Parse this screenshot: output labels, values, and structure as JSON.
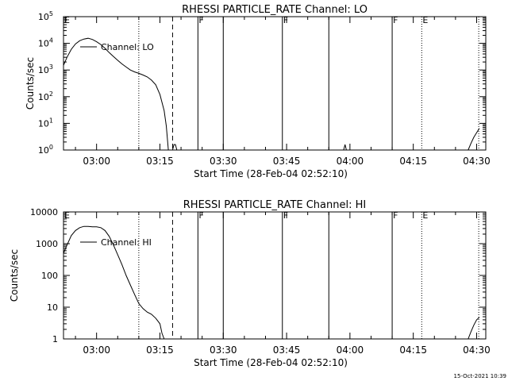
{
  "footer": {
    "timestamp": "15-Oct-2021 10:39"
  },
  "chart_data": [
    {
      "type": "line",
      "title": "RHESSI PARTICLE_RATE Channel: LO",
      "xlabel": "Start Time (28-Feb-04 02:52:10)",
      "ylabel": "Counts/sec",
      "y_scale": "log",
      "ylim": [
        1,
        100000
      ],
      "xlim": [
        "02:52:10",
        "04:32:10"
      ],
      "x_tick_labels": [
        "03:00",
        "03:15",
        "03:30",
        "03:45",
        "04:00",
        "04:15",
        "04:30"
      ],
      "y_tick_labels": [
        {
          "base": "10",
          "exp": "0"
        },
        {
          "base": "10",
          "exp": "1"
        },
        {
          "base": "10",
          "exp": "2"
        },
        {
          "base": "10",
          "exp": "3"
        },
        {
          "base": "10",
          "exp": "4"
        },
        {
          "base": "10",
          "exp": "5"
        }
      ],
      "legend": "top-left",
      "series": [
        {
          "name": "Channel: LO",
          "points": [
            [
              "02:52:10",
              1500
            ],
            [
              "02:53:00",
              3000
            ],
            [
              "02:54:00",
              6000
            ],
            [
              "02:55:00",
              9500
            ],
            [
              "02:56:00",
              12500
            ],
            [
              "02:57:00",
              14500
            ],
            [
              "02:58:00",
              15500
            ],
            [
              "02:59:00",
              14000
            ],
            [
              "03:00:00",
              11500
            ],
            [
              "03:01:00",
              9000
            ],
            [
              "03:02:00",
              6500
            ],
            [
              "03:03:00",
              4500
            ],
            [
              "03:04:00",
              3200
            ],
            [
              "03:05:00",
              2300
            ],
            [
              "03:06:00",
              1700
            ],
            [
              "03:07:00",
              1300
            ],
            [
              "03:08:00",
              1000
            ],
            [
              "03:09:00",
              850
            ],
            [
              "03:10:00",
              750
            ],
            [
              "03:11:00",
              650
            ],
            [
              "03:12:00",
              550
            ],
            [
              "03:13:00",
              420
            ],
            [
              "03:14:00",
              280
            ],
            [
              "03:15:00",
              120
            ],
            [
              "03:16:00",
              30
            ],
            [
              "03:16:30",
              8
            ],
            [
              "03:17:00",
              1
            ]
          ]
        },
        {
          "name": "",
          "points": [
            [
              "03:18:00",
              1
            ],
            [
              "03:18:20",
              1.6
            ],
            [
              "03:18:40",
              1.6
            ],
            [
              "03:19:00",
              1
            ]
          ]
        },
        {
          "name": "",
          "points": [
            [
              "03:58:30",
              1
            ],
            [
              "03:58:50",
              1.6
            ],
            [
              "03:59:10",
              1
            ]
          ]
        },
        {
          "name": "",
          "points": [
            [
              "04:28:00",
              1
            ],
            [
              "04:28:40",
              1.8
            ],
            [
              "04:29:20",
              3
            ],
            [
              "04:30:00",
              4.5
            ],
            [
              "04:30:40",
              6.5
            ]
          ]
        }
      ],
      "markers": [
        {
          "time": "02:52:10",
          "style": "solid",
          "label": "E"
        },
        {
          "time": "03:10:00",
          "style": "dotted",
          "label": ""
        },
        {
          "time": "03:18:00",
          "style": "dashed",
          "label": ""
        },
        {
          "time": "03:24:00",
          "style": "solid",
          "label": "F"
        },
        {
          "time": "03:30:00",
          "style": "solid",
          "label": ""
        },
        {
          "time": "03:44:00",
          "style": "solid",
          "label": "F"
        },
        {
          "time": "03:55:00",
          "style": "solid",
          "label": ""
        },
        {
          "time": "04:10:00",
          "style": "solid",
          "label": "F"
        },
        {
          "time": "04:17:00",
          "style": "dotted",
          "label": "E"
        },
        {
          "time": "04:30:30",
          "style": "dotted",
          "label": ""
        }
      ]
    },
    {
      "type": "line",
      "title": "RHESSI PARTICLE_RATE Channel: HI",
      "xlabel": "Start Time (28-Feb-04 02:52:10)",
      "ylabel": "Counts/sec",
      "y_scale": "log",
      "ylim": [
        1,
        10000
      ],
      "xlim": [
        "02:52:10",
        "04:32:10"
      ],
      "x_tick_labels": [
        "03:00",
        "03:15",
        "03:30",
        "03:45",
        "04:00",
        "04:15",
        "04:30"
      ],
      "y_tick_labels": [
        {
          "base": "1",
          "exp": ""
        },
        {
          "base": "10",
          "exp": ""
        },
        {
          "base": "100",
          "exp": ""
        },
        {
          "base": "1000",
          "exp": ""
        },
        {
          "base": "10000",
          "exp": ""
        }
      ],
      "legend": "top-left",
      "series": [
        {
          "name": "Channel: HI",
          "points": [
            [
              "02:52:10",
              500
            ],
            [
              "02:53:00",
              900
            ],
            [
              "02:54:00",
              1800
            ],
            [
              "02:55:00",
              2600
            ],
            [
              "02:56:00",
              3200
            ],
            [
              "02:57:00",
              3500
            ],
            [
              "02:58:00",
              3500
            ],
            [
              "02:59:00",
              3400
            ],
            [
              "03:00:00",
              3400
            ],
            [
              "03:01:00",
              3200
            ],
            [
              "03:02:00",
              2600
            ],
            [
              "03:03:00",
              1700
            ],
            [
              "03:04:00",
              900
            ],
            [
              "03:05:00",
              450
            ],
            [
              "03:06:00",
              220
            ],
            [
              "03:07:00",
              100
            ],
            [
              "03:08:00",
              50
            ],
            [
              "03:09:00",
              25
            ],
            [
              "03:10:00",
              13
            ],
            [
              "03:11:00",
              9
            ],
            [
              "03:12:00",
              7
            ],
            [
              "03:13:00",
              6
            ],
            [
              "03:14:00",
              4.5
            ],
            [
              "03:15:00",
              3
            ],
            [
              "03:15:30",
              1.5
            ],
            [
              "03:16:00",
              1
            ]
          ]
        },
        {
          "name": "",
          "points": [
            [
              "04:28:00",
              1
            ],
            [
              "04:28:40",
              1.7
            ],
            [
              "04:29:20",
              2.7
            ],
            [
              "04:30:00",
              4
            ],
            [
              "04:30:40",
              4.8
            ]
          ]
        }
      ],
      "markers": [
        {
          "time": "02:52:10",
          "style": "solid",
          "label": "E"
        },
        {
          "time": "03:10:00",
          "style": "dotted",
          "label": ""
        },
        {
          "time": "03:18:00",
          "style": "dashed",
          "label": ""
        },
        {
          "time": "03:24:00",
          "style": "solid",
          "label": "F"
        },
        {
          "time": "03:30:00",
          "style": "solid",
          "label": ""
        },
        {
          "time": "03:44:00",
          "style": "solid",
          "label": "F"
        },
        {
          "time": "03:55:00",
          "style": "solid",
          "label": ""
        },
        {
          "time": "04:10:00",
          "style": "solid",
          "label": "F"
        },
        {
          "time": "04:17:00",
          "style": "dotted",
          "label": "E"
        },
        {
          "time": "04:30:30",
          "style": "dotted",
          "label": ""
        }
      ]
    }
  ]
}
